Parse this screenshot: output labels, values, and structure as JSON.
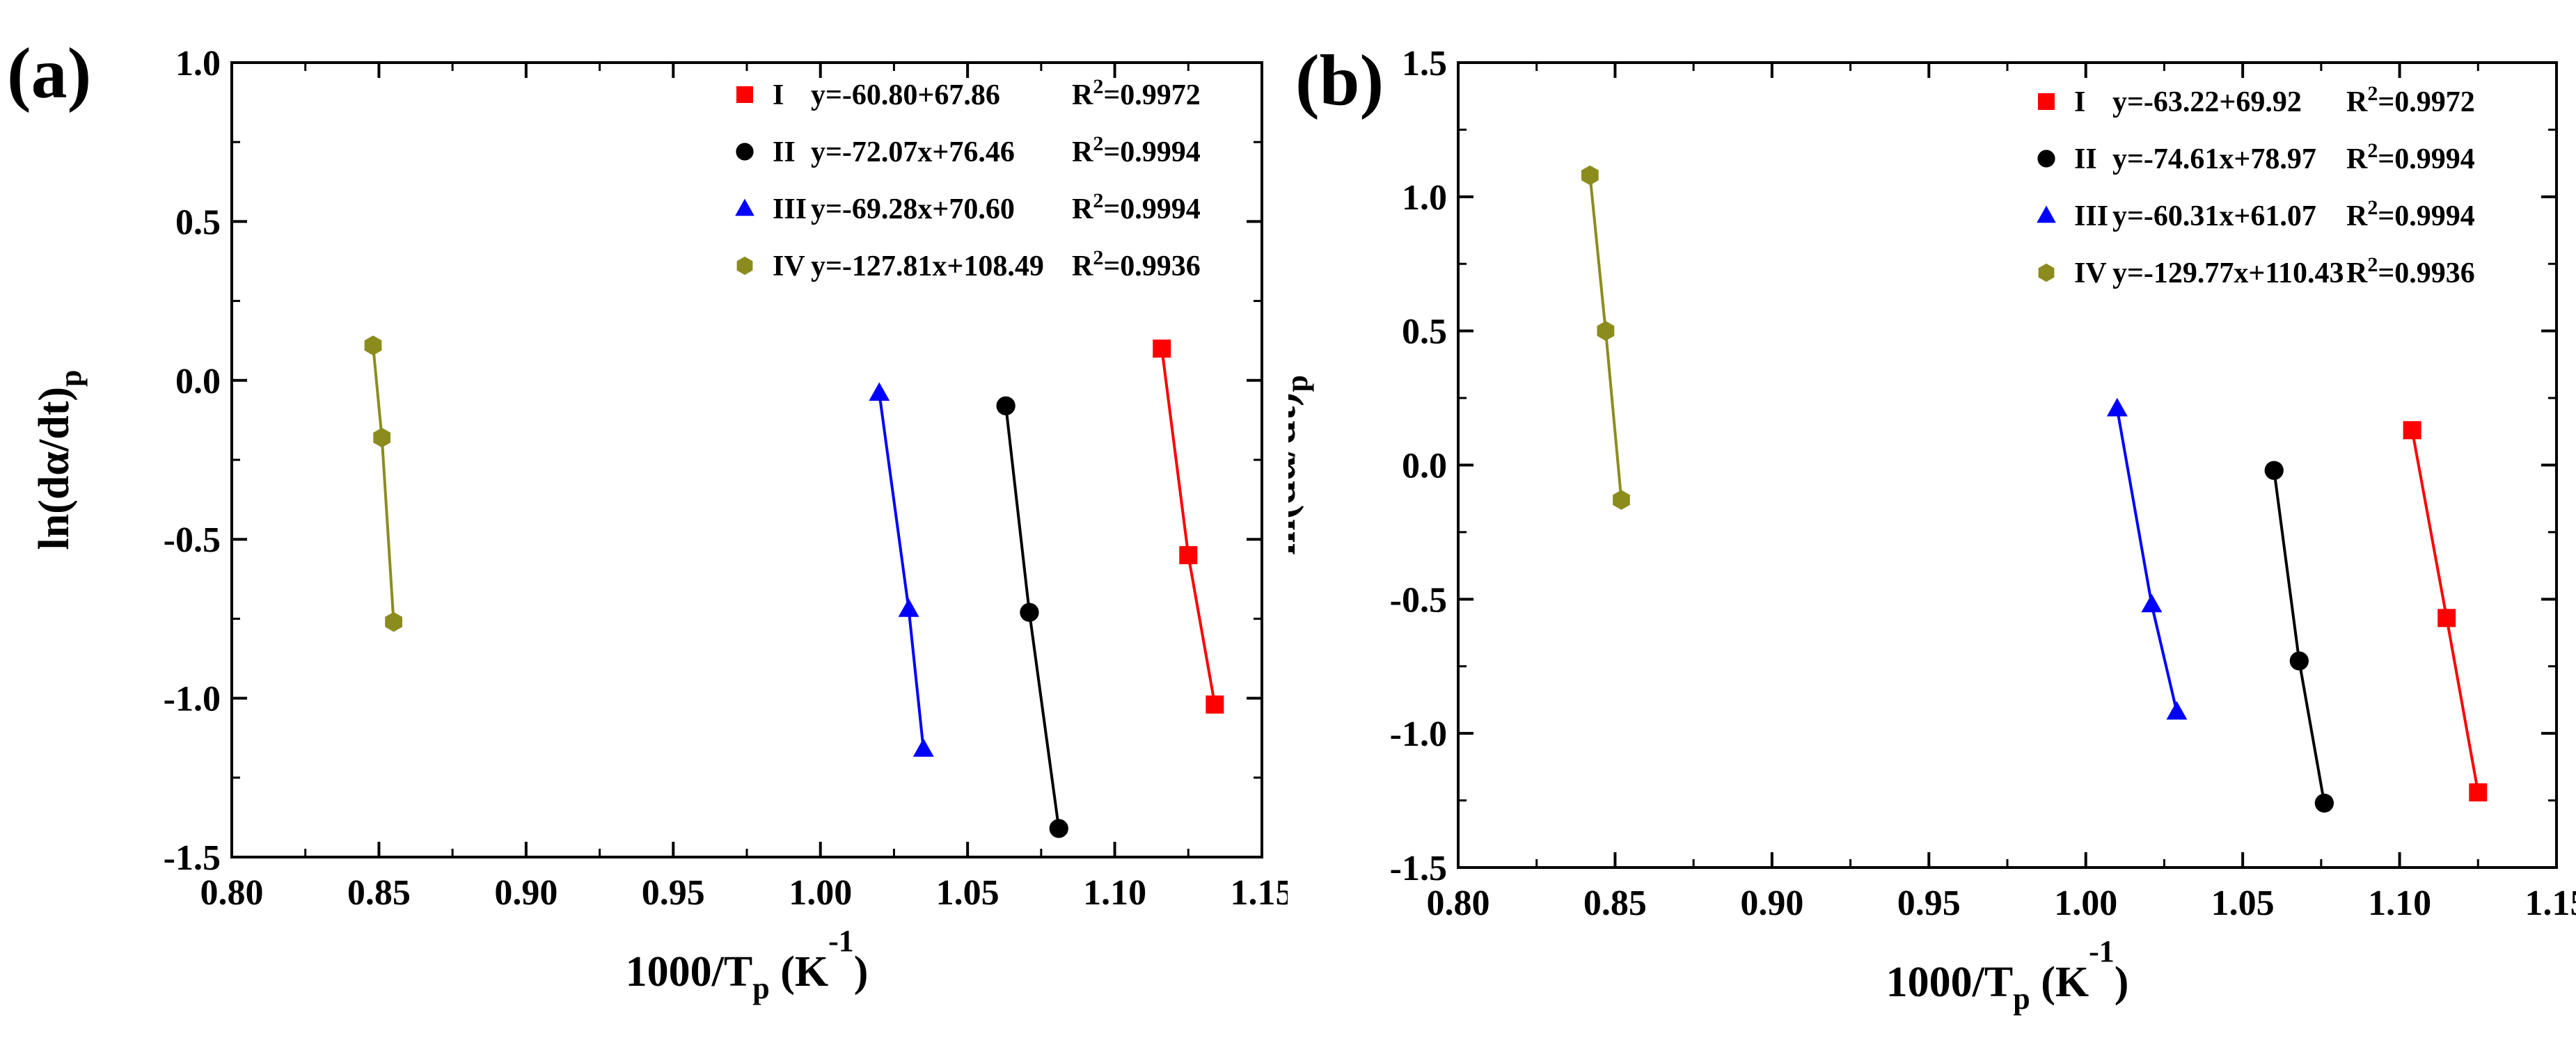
{
  "chart_data": [
    {
      "type": "scatter",
      "panel_label": "(a)",
      "xlabel": "1000/T",
      "xlabel_sub": "p",
      "xlabel_unit_open": " (K",
      "xlabel_sup": "-1",
      "xlabel_unit_close": ")",
      "ylabel": "ln(dα/dt)",
      "ylabel_sub": "p",
      "xlim": [
        0.8,
        1.15
      ],
      "ylim": [
        -1.5,
        1.0
      ],
      "xticks": [
        "0.80",
        "0.85",
        "0.90",
        "0.95",
        "1.00",
        "1.05",
        "1.10",
        "1.15"
      ],
      "yticks": [
        "-1.5",
        "-1.0",
        "-0.5",
        "0.0",
        "0.5",
        "1.0"
      ],
      "legend_position": "top-right",
      "series": [
        {
          "name": "I",
          "marker": "square",
          "color": "#ff0000",
          "equation": "y=-60.80+67.86",
          "r2": "R2=0.9972",
          "r2_prefix": "R",
          "r2_sup": "2",
          "r2_value": "=0.9972",
          "x": [
            1.116,
            1.125,
            1.134
          ],
          "y": [
            0.1,
            -0.55,
            -1.02
          ]
        },
        {
          "name": "II",
          "marker": "circle",
          "color": "#000000",
          "equation": "y=-72.07x+76.46",
          "r2": "R2=0.9994",
          "r2_prefix": "R",
          "r2_sup": "2",
          "r2_value": "=0.9994",
          "x": [
            1.063,
            1.071,
            1.081
          ],
          "y": [
            -0.08,
            -0.73,
            -1.41
          ]
        },
        {
          "name": "III",
          "marker": "triangle",
          "color": "#0000ff",
          "equation": "y=-69.28x+70.60",
          "r2": "R2=0.9994",
          "r2_prefix": "R",
          "r2_sup": "2",
          "r2_value": "=0.9994",
          "x": [
            1.02,
            1.03,
            1.035
          ],
          "y": [
            -0.04,
            -0.72,
            -1.16
          ]
        },
        {
          "name": "IV",
          "marker": "hexagon",
          "color": "#8c8c1e",
          "equation": "y=-127.81x+108.49",
          "r2": "R2=0.9936",
          "r2_prefix": "R",
          "r2_sup": "2",
          "r2_value": "=0.9936",
          "x": [
            0.848,
            0.851,
            0.855
          ],
          "y": [
            0.11,
            -0.18,
            -0.76
          ]
        }
      ]
    },
    {
      "type": "scatter",
      "panel_label": "(b)",
      "xlabel": "1000/T",
      "xlabel_sub": "p",
      "xlabel_unit_open": " (K",
      "xlabel_sup": "-1",
      "xlabel_unit_close": ")",
      "ylabel": "ln(dα/dt)",
      "ylabel_sub": "p",
      "xlim": [
        0.8,
        1.15
      ],
      "ylim": [
        -1.5,
        1.5
      ],
      "xticks": [
        "0.80",
        "0.85",
        "0.90",
        "0.95",
        "1.00",
        "1.05",
        "1.10",
        "1.15"
      ],
      "yticks": [
        "-1.5",
        "-1.0",
        "-0.5",
        "0.0",
        "0.5",
        "1.0",
        "1.5"
      ],
      "legend_position": "top-right",
      "series": [
        {
          "name": "I",
          "marker": "square",
          "color": "#ff0000",
          "equation": "y=-63.22+69.92",
          "r2": "R2=0.9972",
          "r2_prefix": "R",
          "r2_sup": "2",
          "r2_value": "=0.9972",
          "x": [
            1.104,
            1.115,
            1.125
          ],
          "y": [
            0.13,
            -0.57,
            -1.22
          ]
        },
        {
          "name": "II",
          "marker": "circle",
          "color": "#000000",
          "equation": "y=-74.61x+78.97",
          "r2": "R2=0.9994",
          "r2_prefix": "R",
          "r2_sup": "2",
          "r2_value": "=0.9994",
          "x": [
            1.06,
            1.068,
            1.076
          ],
          "y": [
            -0.02,
            -0.73,
            -1.26
          ]
        },
        {
          "name": "III",
          "marker": "triangle",
          "color": "#0000ff",
          "equation": "y=-60.31x+61.07",
          "r2": "R2=0.9994",
          "r2_prefix": "R",
          "r2_sup": "2",
          "r2_value": "=0.9994",
          "x": [
            1.01,
            1.021,
            1.029
          ],
          "y": [
            0.21,
            -0.52,
            -0.92
          ]
        },
        {
          "name": "IV",
          "marker": "hexagon",
          "color": "#8c8c1e",
          "equation": "y=-129.77x+110.43",
          "r2": "R2=0.9936",
          "r2_prefix": "R",
          "r2_sup": "2",
          "r2_value": "=0.9936",
          "x": [
            0.842,
            0.847,
            0.852
          ],
          "y": [
            1.08,
            0.5,
            -0.13
          ]
        }
      ]
    }
  ]
}
